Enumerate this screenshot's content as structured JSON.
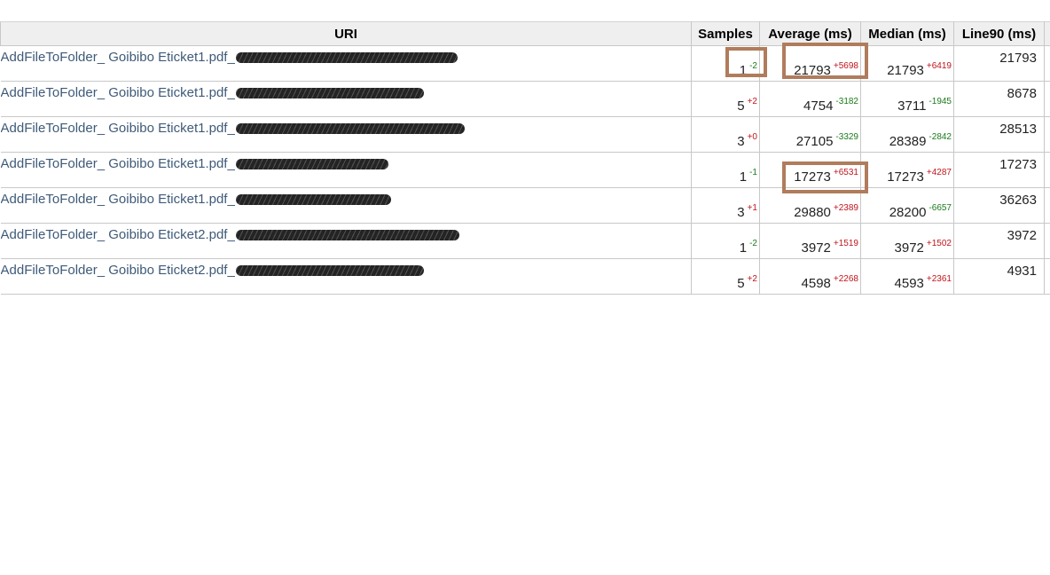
{
  "columns": [
    "URI",
    "Samples",
    "Average (ms)",
    "Median (ms)",
    "Line90 (ms)"
  ],
  "colors": {
    "link": "#3e5a78",
    "delta_positive": "#c0151b",
    "delta_negative": "#1a7a1a",
    "highlight": "#b07c5c"
  },
  "rows": [
    {
      "uri": "AddFileToFolder_ Goibibo Eticket1.pdf_",
      "samples": "1",
      "samples_delta": "-2",
      "average": "21793",
      "average_delta": "+5698",
      "median": "21793",
      "median_delta": "+6419",
      "line90": "21793"
    },
    {
      "uri": "AddFileToFolder_ Goibibo Eticket1.pdf_",
      "samples": "5",
      "samples_delta": "+2",
      "average": "4754",
      "average_delta": "-3182",
      "median": "3711",
      "median_delta": "-1945",
      "line90": "8678"
    },
    {
      "uri": "AddFileToFolder_ Goibibo Eticket1.pdf_",
      "samples": "3",
      "samples_delta": "+0",
      "average": "27105",
      "average_delta": "-3329",
      "median": "28389",
      "median_delta": "-2842",
      "line90": "28513"
    },
    {
      "uri": "AddFileToFolder_ Goibibo Eticket1.pdf_",
      "samples": "1",
      "samples_delta": "-1",
      "average": "17273",
      "average_delta": "+6531",
      "median": "17273",
      "median_delta": "+4287",
      "line90": "17273"
    },
    {
      "uri": "AddFileToFolder_ Goibibo Eticket1.pdf_",
      "samples": "3",
      "samples_delta": "+1",
      "average": "29880",
      "average_delta": "+2389",
      "median": "28200",
      "median_delta": "-6657",
      "line90": "36263"
    },
    {
      "uri": "AddFileToFolder_ Goibibo Eticket2.pdf_",
      "samples": "1",
      "samples_delta": "-2",
      "average": "3972",
      "average_delta": "+1519",
      "median": "3972",
      "median_delta": "+1502",
      "line90": "3972"
    },
    {
      "uri": "AddFileToFolder_ Goibibo Eticket2.pdf_",
      "samples": "5",
      "samples_delta": "+2",
      "average": "4598",
      "average_delta": "+2268",
      "median": "4593",
      "median_delta": "+2361",
      "line90": "4931"
    }
  ]
}
